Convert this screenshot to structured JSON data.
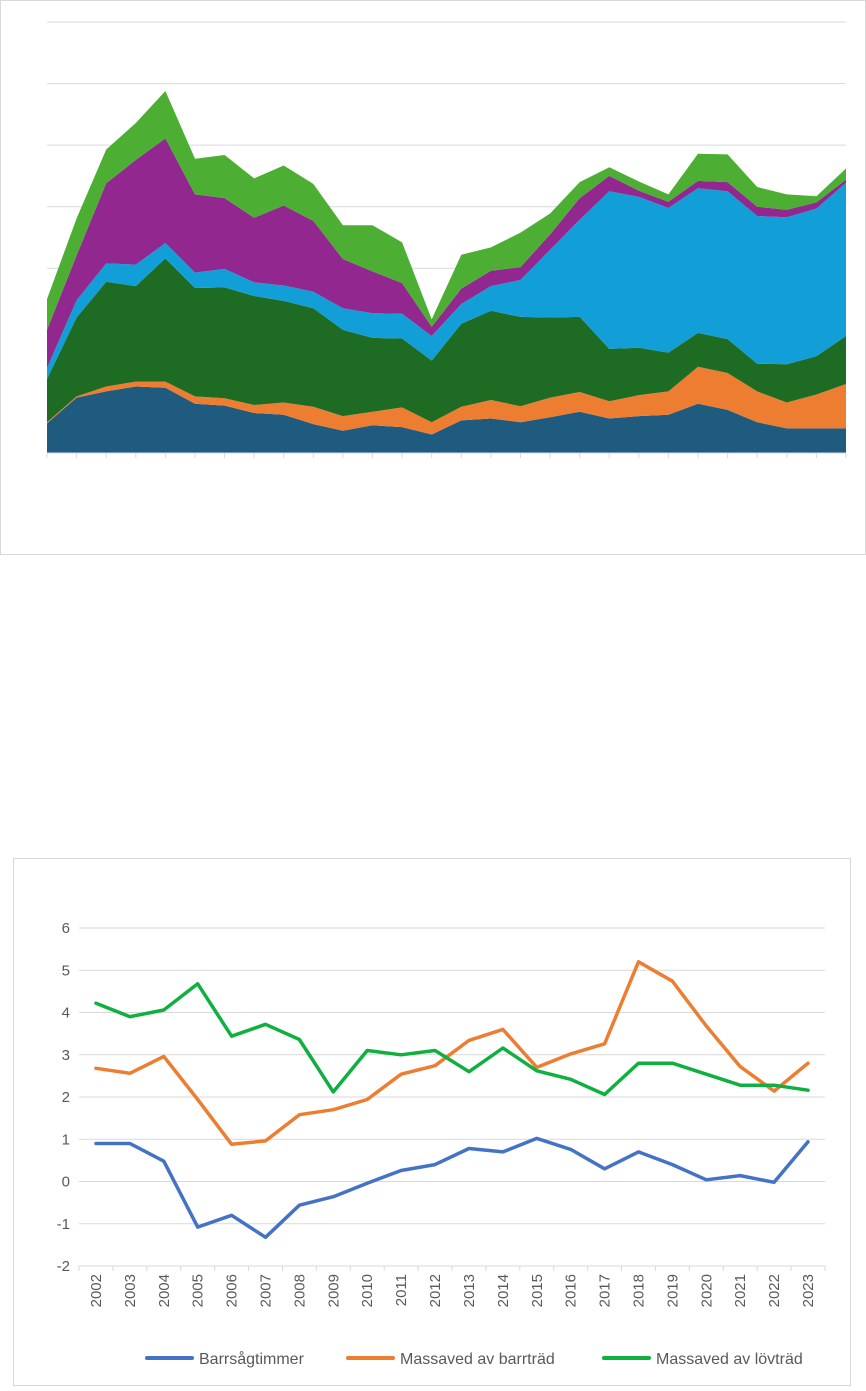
{
  "chart_data": [
    {
      "type": "area",
      "stacked": true,
      "title": "",
      "xlabel": "",
      "ylabel": "",
      "n_points": 28,
      "ylim": [
        0,
        7
      ],
      "grid": true,
      "legend": "none",
      "series": [
        {
          "color": "#1f5b7e",
          "values": [
            0.48,
            0.9,
            1.0,
            1.08,
            1.06,
            0.8,
            0.77,
            0.65,
            0.62,
            0.47,
            0.36,
            0.45,
            0.42,
            0.3,
            0.53,
            0.56,
            0.5,
            0.58,
            0.67,
            0.56,
            0.6,
            0.62,
            0.8,
            0.7,
            0.5,
            0.4,
            0.4,
            0.4
          ]
        },
        {
          "color": "#ed7d31",
          "values": [
            0.02,
            0.02,
            0.08,
            0.08,
            0.1,
            0.12,
            0.12,
            0.13,
            0.2,
            0.28,
            0.24,
            0.22,
            0.32,
            0.2,
            0.22,
            0.3,
            0.26,
            0.32,
            0.32,
            0.28,
            0.34,
            0.38,
            0.6,
            0.6,
            0.5,
            0.42,
            0.55,
            0.72
          ]
        },
        {
          "color": "#1e6b23",
          "values": [
            0.7,
            1.28,
            1.7,
            1.55,
            2.0,
            1.76,
            1.8,
            1.77,
            1.65,
            1.6,
            1.4,
            1.2,
            1.12,
            1.0,
            1.35,
            1.45,
            1.45,
            1.3,
            1.22,
            0.85,
            0.77,
            0.63,
            0.55,
            0.55,
            0.45,
            0.62,
            0.62,
            0.78
          ]
        },
        {
          "color": "#129ed6",
          "values": [
            0.18,
            0.28,
            0.3,
            0.35,
            0.25,
            0.25,
            0.3,
            0.22,
            0.25,
            0.27,
            0.35,
            0.4,
            0.4,
            0.4,
            0.32,
            0.4,
            0.6,
            1.1,
            1.58,
            2.56,
            2.45,
            2.35,
            2.35,
            2.4,
            2.4,
            2.39,
            2.4,
            2.49
          ]
        },
        {
          "color": "#92278f",
          "values": [
            0.62,
            0.73,
            1.3,
            1.7,
            1.7,
            1.27,
            1.15,
            1.05,
            1.3,
            1.15,
            0.8,
            0.68,
            0.5,
            0.15,
            0.25,
            0.25,
            0.21,
            0.25,
            0.35,
            0.25,
            0.1,
            0.1,
            0.12,
            0.15,
            0.15,
            0.12,
            0.1,
            0.05
          ]
        },
        {
          "color": "#4caf33",
          "values": [
            0.5,
            0.6,
            0.55,
            0.6,
            0.77,
            0.58,
            0.7,
            0.64,
            0.65,
            0.6,
            0.55,
            0.75,
            0.66,
            0.12,
            0.55,
            0.38,
            0.56,
            0.34,
            0.26,
            0.14,
            0.15,
            0.12,
            0.44,
            0.45,
            0.32,
            0.25,
            0.1,
            0.18
          ]
        }
      ]
    },
    {
      "type": "line",
      "title": "",
      "xlabel": "",
      "ylabel": "",
      "categories": [
        "2002",
        "2003",
        "2004",
        "2005",
        "2006",
        "2007",
        "2008",
        "2009",
        "2010",
        "2011",
        "2012",
        "2013",
        "2014",
        "2015",
        "2016",
        "2017",
        "2018",
        "2019",
        "2020",
        "2021",
        "2022",
        "2023"
      ],
      "ylim": [
        -2,
        6
      ],
      "yticks": [
        "-2",
        "-1",
        "0",
        "1",
        "2",
        "3",
        "4",
        "5",
        "6"
      ],
      "grid": true,
      "legend": "bottom",
      "series": [
        {
          "name": "Barrsågtimmer",
          "color": "#4472c4",
          "values": [
            0.9,
            0.9,
            0.48,
            -1.08,
            -0.8,
            -1.32,
            -0.56,
            -0.36,
            -0.04,
            0.26,
            0.4,
            0.78,
            0.7,
            1.02,
            0.76,
            0.3,
            0.7,
            0.4,
            0.04,
            0.14,
            -0.02,
            0.94
          ]
        },
        {
          "name": "Massaved av barrträd",
          "color": "#ed7d31",
          "values": [
            2.68,
            2.56,
            2.96,
            1.94,
            0.88,
            0.96,
            1.58,
            1.7,
            1.94,
            2.54,
            2.74,
            3.34,
            3.6,
            2.7,
            3.02,
            3.26,
            5.2,
            4.74,
            3.68,
            2.72,
            2.14,
            2.8
          ]
        },
        {
          "name": "Massaved av lövträd",
          "color": "#10b040",
          "values": [
            4.22,
            3.9,
            4.06,
            4.68,
            3.44,
            3.72,
            3.36,
            2.12,
            3.1,
            3.0,
            3.1,
            2.6,
            3.16,
            2.62,
            2.42,
            2.06,
            2.8,
            2.8,
            2.54,
            2.28,
            2.28,
            2.16
          ]
        }
      ]
    }
  ]
}
